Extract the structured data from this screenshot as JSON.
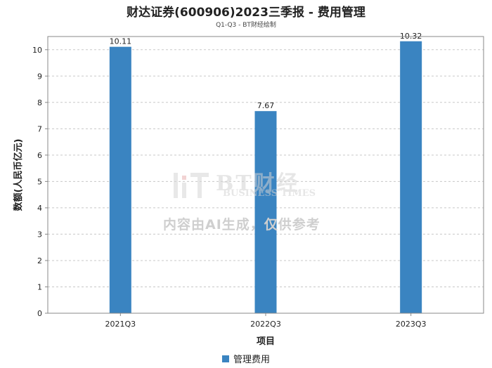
{
  "chart_data": {
    "type": "bar",
    "title": "财达证券(600906)2023三季报 - 费用管理",
    "subtitle": "Q1-Q3 - BT财经绘制",
    "xlabel": "项目",
    "ylabel": "数额(人民币亿元)",
    "categories": [
      "2021Q3",
      "2022Q3",
      "2023Q3"
    ],
    "series": [
      {
        "name": "管理费用",
        "values": [
          10.11,
          7.67,
          10.32
        ],
        "color": "#3a84c1"
      }
    ],
    "data_labels": [
      "10.11",
      "7.67",
      "10.32"
    ],
    "ylim": [
      0,
      10.5
    ],
    "yticks": [
      0,
      1,
      2,
      3,
      4,
      5,
      6,
      7,
      8,
      9,
      10
    ],
    "grid": true,
    "legend_position": "bottom-center"
  },
  "watermark": {
    "brand": "BT财经",
    "brand_en": "BUSINESS TIMES",
    "notice": "内容由AI生成，仅供参考"
  }
}
